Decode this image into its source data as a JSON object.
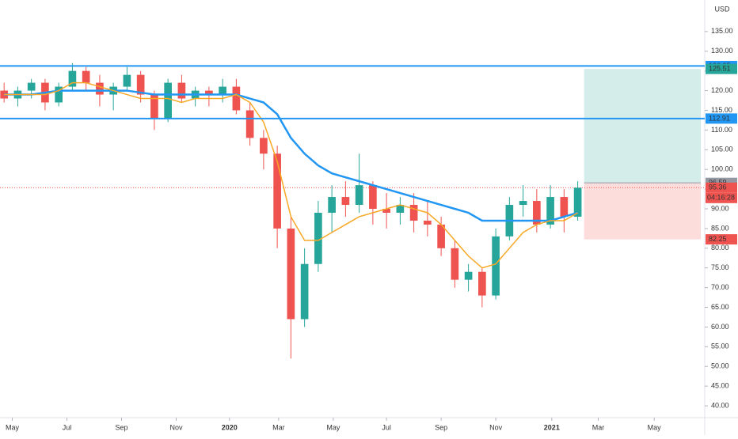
{
  "chart_data": {
    "type": "candlestick",
    "currency": "USD",
    "categories": [
      null,
      null,
      null,
      null,
      null,
      null,
      null,
      null,
      null,
      null,
      null,
      null,
      null,
      null,
      null,
      null,
      null,
      null,
      null,
      null,
      null,
      null,
      null,
      null,
      null,
      null,
      null,
      null,
      null,
      null,
      null,
      null,
      null,
      null,
      null,
      null,
      null,
      null,
      null,
      null,
      null,
      null,
      null
    ],
    "open": [
      120,
      118,
      120,
      122,
      117,
      121,
      125,
      122,
      119,
      121,
      124,
      119,
      113,
      122,
      118,
      120,
      119,
      121,
      115,
      108,
      104,
      85,
      62,
      76,
      89,
      93,
      91,
      96,
      90,
      89,
      91,
      87,
      86,
      80,
      72,
      74,
      68,
      83,
      91,
      92,
      86,
      93,
      88
    ],
    "high": [
      122,
      121,
      123,
      123,
      122,
      127,
      126,
      124,
      122,
      126,
      125,
      120,
      123,
      124,
      121,
      121,
      123,
      123,
      117,
      110,
      106,
      88,
      80,
      92,
      96,
      97,
      104,
      97,
      94,
      93,
      94,
      92,
      88,
      82,
      76,
      75,
      85,
      93,
      96,
      95,
      96,
      95,
      97
    ],
    "low": [
      117,
      116,
      118,
      115,
      116,
      120,
      120,
      116,
      115,
      120,
      117,
      110,
      112,
      117,
      116,
      116,
      117,
      114,
      106,
      100,
      80,
      52,
      60,
      74,
      84,
      88,
      89,
      86,
      85,
      86,
      84,
      83,
      78,
      70,
      69,
      65,
      67,
      82,
      88,
      84,
      85,
      84,
      87
    ],
    "close": [
      118,
      120,
      122,
      117,
      121,
      125,
      122,
      119,
      121,
      124,
      119,
      113,
      122,
      118,
      120,
      119,
      121,
      115,
      108,
      104,
      85,
      62,
      76,
      89,
      93,
      91,
      96,
      90,
      89,
      91,
      87,
      86,
      80,
      72,
      74,
      68,
      83,
      91,
      92,
      86,
      93,
      88,
      95.36
    ],
    "up_color": "#26a69a",
    "down_color": "#ef5350",
    "moving_averages": [
      {
        "color": "#2196f3",
        "values": [
          119,
          119,
          119,
          119.5,
          120,
          120,
          120,
          120,
          120,
          120,
          119.5,
          119,
          119,
          119,
          119,
          119,
          119,
          119,
          118,
          117,
          114,
          108,
          104,
          101,
          99,
          98,
          97,
          96,
          95,
          94,
          93,
          92,
          91,
          90,
          89,
          87,
          87,
          87,
          87,
          87,
          87,
          88,
          89
        ]
      },
      {
        "color": "#f9a825",
        "values": [
          119,
          119,
          119,
          119,
          120,
          122,
          122,
          121,
          120,
          119,
          118,
          118,
          118,
          117,
          118,
          118,
          118,
          119,
          117,
          112,
          102,
          88,
          82,
          82,
          84,
          86,
          88,
          89,
          90,
          91,
          90,
          89,
          86,
          82,
          78,
          75,
          76,
          80,
          84,
          86,
          87,
          87,
          89
        ]
      }
    ],
    "levels": [
      {
        "value": 126.25,
        "color": "#2196f3"
      },
      {
        "value": 112.91,
        "color": "#2196f3"
      }
    ],
    "position": {
      "entry": 96.59,
      "target": 125.51,
      "stop": 82.25
    },
    "countdown": "04:16:28",
    "xlim": [
      -0.3,
      51.3
    ],
    "xticks": [
      {
        "value": 0.6,
        "label": "May"
      },
      {
        "value": 4.6,
        "label": "Jul"
      },
      {
        "value": 8.6,
        "label": "Sep"
      },
      {
        "value": 12.6,
        "label": "Nov"
      },
      {
        "value": 16.5,
        "label": "2020"
      },
      {
        "value": 20.1,
        "label": "Mar"
      },
      {
        "value": 24.1,
        "label": "May"
      },
      {
        "value": 28.0,
        "label": "Jul"
      },
      {
        "value": 32.0,
        "label": "Sep"
      },
      {
        "value": 36.0,
        "label": "Nov"
      },
      {
        "value": 40.1,
        "label": "2021"
      },
      {
        "value": 43.5,
        "label": "Mar"
      },
      {
        "value": 47.6,
        "label": "May"
      }
    ],
    "ylim": [
      37,
      143
    ],
    "yticks": [
      {
        "value": 40,
        "label": "40.00"
      },
      {
        "value": 45,
        "label": "45.00"
      },
      {
        "value": 50,
        "label": "50.00"
      },
      {
        "value": 55,
        "label": "55.00"
      },
      {
        "value": 60,
        "label": "60.00"
      },
      {
        "value": 65,
        "label": "65.00"
      },
      {
        "value": 70,
        "label": "70.00"
      },
      {
        "value": 75,
        "label": "75.00"
      },
      {
        "value": 80,
        "label": "80.00"
      },
      {
        "value": 85,
        "label": "85.00"
      },
      {
        "value": 90,
        "label": "90.00"
      },
      {
        "value": 95,
        "label": "95.00"
      },
      {
        "value": 100,
        "label": "100.00"
      },
      {
        "value": 105,
        "label": "105.00"
      },
      {
        "value": 110,
        "label": "110.00"
      },
      {
        "value": 115,
        "label": "115.00"
      },
      {
        "value": 120,
        "label": "120.00"
      },
      {
        "value": 125,
        "label": "125.00"
      },
      {
        "value": 130,
        "label": "130.00"
      },
      {
        "value": 135,
        "label": "135.00"
      }
    ]
  }
}
